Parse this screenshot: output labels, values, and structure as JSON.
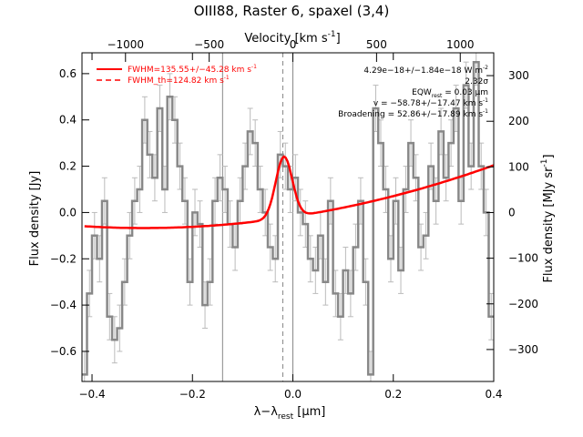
{
  "chart_data": {
    "type": "line",
    "title": "OIII88, Raster 6, spaxel (3,4)",
    "xlabel": "λ−λ",
    "xlabel_sub": "rest",
    "xlabel_unit": "[μm]",
    "ylabel_left": "Flux density [Jy]",
    "ylabel_right": "Flux density [MJy sr",
    "ylabel_right_sup": "-1",
    "ylabel_right_end": "]",
    "x2label": "Velocity [km s",
    "x2label_sup": "-1",
    "x2label_end": "]",
    "xlim": [
      -0.42,
      0.4
    ],
    "ylim": [
      -0.73,
      0.69
    ],
    "y2lim": [
      -370,
      350
    ],
    "x2lim": [
      -1260,
      1200
    ],
    "xticks": [
      -0.4,
      -0.2,
      0.0,
      0.2,
      0.4
    ],
    "xtick_labels": [
      "−0.4",
      "−0.2",
      "0.0",
      "0.2",
      "0.4"
    ],
    "yticks": [
      -0.6,
      -0.4,
      -0.2,
      0.0,
      0.2,
      0.4,
      0.6
    ],
    "ytick_labels": [
      "−0.6",
      "−0.4",
      "−0.2",
      "0.0",
      "0.2",
      "0.4",
      "0.6"
    ],
    "y2ticks": [
      -300,
      -200,
      -100,
      0,
      100,
      200,
      300
    ],
    "y2tick_labels": [
      "−300",
      "−200",
      "−100",
      "0",
      "100",
      "200",
      "300"
    ],
    "x2ticks": [
      -1000,
      -500,
      0,
      500,
      1000
    ],
    "x2tick_labels": [
      "−1000",
      "−500",
      "0",
      "500",
      "1000"
    ],
    "vlines": [
      {
        "x": -0.14,
        "style": "solid",
        "color": "#888888"
      },
      {
        "x": -0.02,
        "style": "dashed",
        "color": "#888888"
      },
      {
        "x": 0.0,
        "style": "solid",
        "color": "#888888"
      }
    ],
    "legend": {
      "placement": "top-left",
      "entries": [
        {
          "label": "FWHM=135.55+/−45.28 km s",
          "sup": "-1",
          "style": "solid",
          "color": "#ff0000"
        },
        {
          "label": "FWHM_th=124.82 km s",
          "sup": "-1",
          "style": "dashed",
          "color": "#ff0000"
        }
      ]
    },
    "annotations": [
      {
        "text": "4.29e−18+/−1.84e−18 W m",
        "sup": "-2"
      },
      {
        "text": "2.32σ"
      },
      {
        "text": "EQW",
        "sub": "rest",
        "text2": " = 0.03 μm"
      },
      {
        "text": "v = −58.78+/−17.47 km s",
        "sup": "-1"
      },
      {
        "text": "Broadening = 52.86+/−17.89 km s",
        "sup": "-1"
      }
    ],
    "series": [
      {
        "style": "step",
        "color": "#888888",
        "x": [
          -0.415,
          -0.405,
          -0.395,
          -0.385,
          -0.375,
          -0.365,
          -0.355,
          -0.345,
          -0.335,
          -0.325,
          -0.315,
          -0.305,
          -0.295,
          -0.285,
          -0.275,
          -0.265,
          -0.255,
          -0.245,
          -0.235,
          -0.225,
          -0.215,
          -0.205,
          -0.195,
          -0.185,
          -0.175,
          -0.165,
          -0.155,
          -0.145,
          -0.135,
          -0.125,
          -0.115,
          -0.105,
          -0.095,
          -0.085,
          -0.075,
          -0.065,
          -0.055,
          -0.045,
          -0.035,
          -0.025,
          -0.015,
          -0.005,
          0.005,
          0.015,
          0.025,
          0.035,
          0.045,
          0.055,
          0.065,
          0.075,
          0.085,
          0.095,
          0.105,
          0.115,
          0.125,
          0.135,
          0.145,
          0.155,
          0.165,
          0.175,
          0.185,
          0.195,
          0.205,
          0.215,
          0.225,
          0.235,
          0.245,
          0.255,
          0.265,
          0.275,
          0.285,
          0.295,
          0.305,
          0.315,
          0.325,
          0.335,
          0.345,
          0.355,
          0.365,
          0.375,
          0.385,
          0.395
        ],
        "y": [
          -0.7,
          -0.35,
          -0.1,
          -0.2,
          0.05,
          -0.45,
          -0.55,
          -0.5,
          -0.3,
          -0.1,
          0.05,
          0.1,
          0.4,
          0.25,
          0.15,
          0.45,
          0.1,
          0.5,
          0.4,
          0.2,
          0.05,
          -0.3,
          0.0,
          -0.05,
          -0.4,
          -0.3,
          0.05,
          0.15,
          0.1,
          -0.05,
          -0.15,
          0.05,
          0.2,
          0.35,
          0.3,
          0.1,
          0.0,
          -0.15,
          -0.2,
          0.25,
          0.2,
          0.1,
          0.15,
          0.0,
          -0.05,
          -0.2,
          -0.25,
          -0.1,
          -0.3,
          0.05,
          -0.35,
          -0.45,
          -0.25,
          -0.35,
          -0.15,
          0.05,
          -0.3,
          -0.7,
          0.45,
          0.3,
          0.1,
          -0.2,
          0.05,
          -0.25,
          0.1,
          0.3,
          0.15,
          -0.15,
          -0.1,
          0.2,
          0.05,
          0.35,
          0.15,
          0.3,
          0.45,
          0.05,
          0.55,
          0.2,
          0.65,
          0.2,
          0.0,
          -0.45
        ],
        "err": 0.1
      },
      {
        "style": "line",
        "color": "#ff0000",
        "name": "FWHM=135.55+/−45.28 km s-1",
        "continuum": {
          "a": -0.0178,
          "b": 0.3315,
          "c": 0.5573
        },
        "gaussian": {
          "amplitude": 0.265,
          "center": -0.0177,
          "sigma": 0.0165
        },
        "xrange": [
          -0.415,
          0.4
        ]
      }
    ],
    "error_bars": true,
    "grid": false
  }
}
